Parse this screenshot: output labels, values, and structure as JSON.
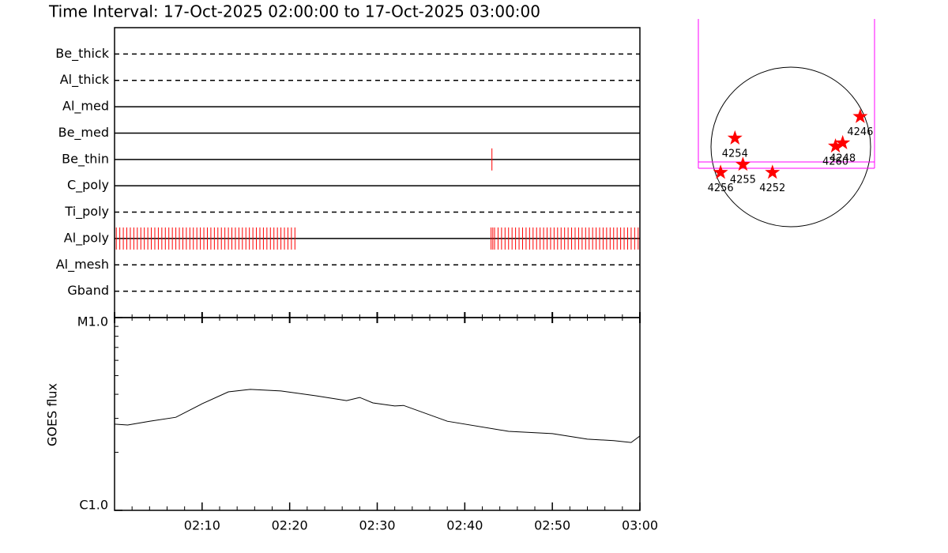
{
  "chart_data": [
    {
      "type": "timeline",
      "title": "Time Interval: 17-Oct-2025 02:00:00 to 17-Oct-2025 03:00:00",
      "xlim": [
        0,
        60
      ],
      "xticks": [
        0,
        10,
        20,
        30,
        40,
        50,
        60
      ],
      "xminorticks": [
        2,
        4,
        6,
        8,
        12,
        14,
        16,
        18,
        22,
        24,
        26,
        28,
        32,
        34,
        36,
        38,
        42,
        44,
        46,
        48,
        52,
        54,
        56,
        58
      ],
      "color": "#ff0000",
      "rows": [
        {
          "name": "Be_thick",
          "line_style": "dashed",
          "times": []
        },
        {
          "name": "Al_thick",
          "line_style": "dashed",
          "times": []
        },
        {
          "name": "Al_med",
          "line_style": "solid",
          "times": []
        },
        {
          "name": "Be_med",
          "line_style": "solid",
          "times": []
        },
        {
          "name": "Be_thin",
          "line_style": "solid",
          "times": [
            43.1
          ]
        },
        {
          "name": "C_poly",
          "line_style": "solid",
          "times": []
        },
        {
          "name": "Ti_poly",
          "line_style": "dashed",
          "times": []
        },
        {
          "name": "Al_poly",
          "line_style": "solid",
          "times": [
            0.2,
            0.6,
            1,
            1.4,
            1.8,
            2.2,
            2.6,
            3,
            3.4,
            3.8,
            4.2,
            4.6,
            5,
            5.4,
            5.8,
            6.2,
            6.6,
            7,
            7.4,
            7.8,
            8.2,
            8.6,
            9,
            9.4,
            9.8,
            10.2,
            10.6,
            11,
            11.4,
            11.8,
            12.2,
            12.6,
            13,
            13.4,
            13.8,
            14.2,
            14.6,
            15,
            15.4,
            15.8,
            16.2,
            16.6,
            17,
            17.4,
            17.8,
            18.2,
            18.6,
            19,
            19.4,
            19.8,
            20.2,
            20.6,
            43,
            43.2,
            43.4,
            43.8,
            44.2,
            44.6,
            45,
            45.4,
            45.8,
            46.2,
            46.6,
            47,
            47.4,
            47.8,
            48.2,
            48.6,
            49,
            49.4,
            49.8,
            50.2,
            50.6,
            51,
            51.4,
            51.8,
            52.2,
            52.6,
            53,
            53.4,
            53.8,
            54.2,
            54.6,
            55,
            55.4,
            55.8,
            56.2,
            56.6,
            57,
            57.4,
            57.8,
            58.2,
            58.6,
            59,
            59.4,
            59.8
          ]
        },
        {
          "name": "Al_mesh",
          "line_style": "dashed",
          "times": []
        },
        {
          "name": "Gband",
          "line_style": "dashed",
          "times": []
        }
      ]
    },
    {
      "type": "line",
      "y_label": "GOES flux",
      "log_y": true,
      "color": "#000000",
      "xlim": [
        0,
        60
      ],
      "xticks": [
        {
          "value": 10,
          "label": "02:10"
        },
        {
          "value": 20,
          "label": "02:20"
        },
        {
          "value": 30,
          "label": "02:30"
        },
        {
          "value": 40,
          "label": "02:40"
        },
        {
          "value": 50,
          "label": "02:50"
        },
        {
          "value": 60,
          "label": "03:00"
        }
      ],
      "xminorticks": [
        2,
        4,
        6,
        8,
        12,
        14,
        16,
        18,
        22,
        24,
        26,
        28,
        32,
        34,
        36,
        38,
        42,
        44,
        46,
        48,
        52,
        54,
        56,
        58
      ],
      "ylim": [
        1e-06,
        1e-05
      ],
      "yticks": [
        {
          "value": 1e-06,
          "label": "C1.0"
        },
        {
          "value": 1e-05,
          "label": "M1.0"
        }
      ],
      "yminorticks": [
        2e-06,
        3e-06,
        4e-06,
        5e-06,
        6e-06,
        7e-06,
        8e-06,
        9e-06
      ],
      "x": [
        0,
        1.5,
        4,
        7,
        10,
        13,
        15.5,
        19,
        23,
        26.5,
        28,
        29.5,
        32,
        33,
        38,
        45,
        50,
        54,
        57,
        59,
        60
      ],
      "values": [
        2.8e-06,
        2.77e-06,
        2.9e-06,
        3.04e-06,
        3.57e-06,
        4.12e-06,
        4.24e-06,
        4.16e-06,
        3.93e-06,
        3.71e-06,
        3.85e-06,
        3.61e-06,
        3.48e-06,
        3.5e-06,
        2.9e-06,
        2.57e-06,
        2.5e-06,
        2.34e-06,
        2.3e-06,
        2.25e-06,
        2.43e-06
      ]
    },
    {
      "type": "map",
      "color": "#ff0000",
      "points": [
        {
          "label": "4254",
          "x": -0.7,
          "y": 0.11
        },
        {
          "label": "4246",
          "x": 0.87,
          "y": 0.38
        },
        {
          "label": "4248",
          "x": 0.65,
          "y": 0.05
        },
        {
          "label": "4260",
          "x": 0.56,
          "y": 0.01
        },
        {
          "label": "4255",
          "x": -0.6,
          "y": -0.22
        },
        {
          "label": "4256",
          "x": -0.88,
          "y": -0.32
        },
        {
          "label": "4252",
          "x": -0.23,
          "y": -0.32
        }
      ]
    }
  ]
}
